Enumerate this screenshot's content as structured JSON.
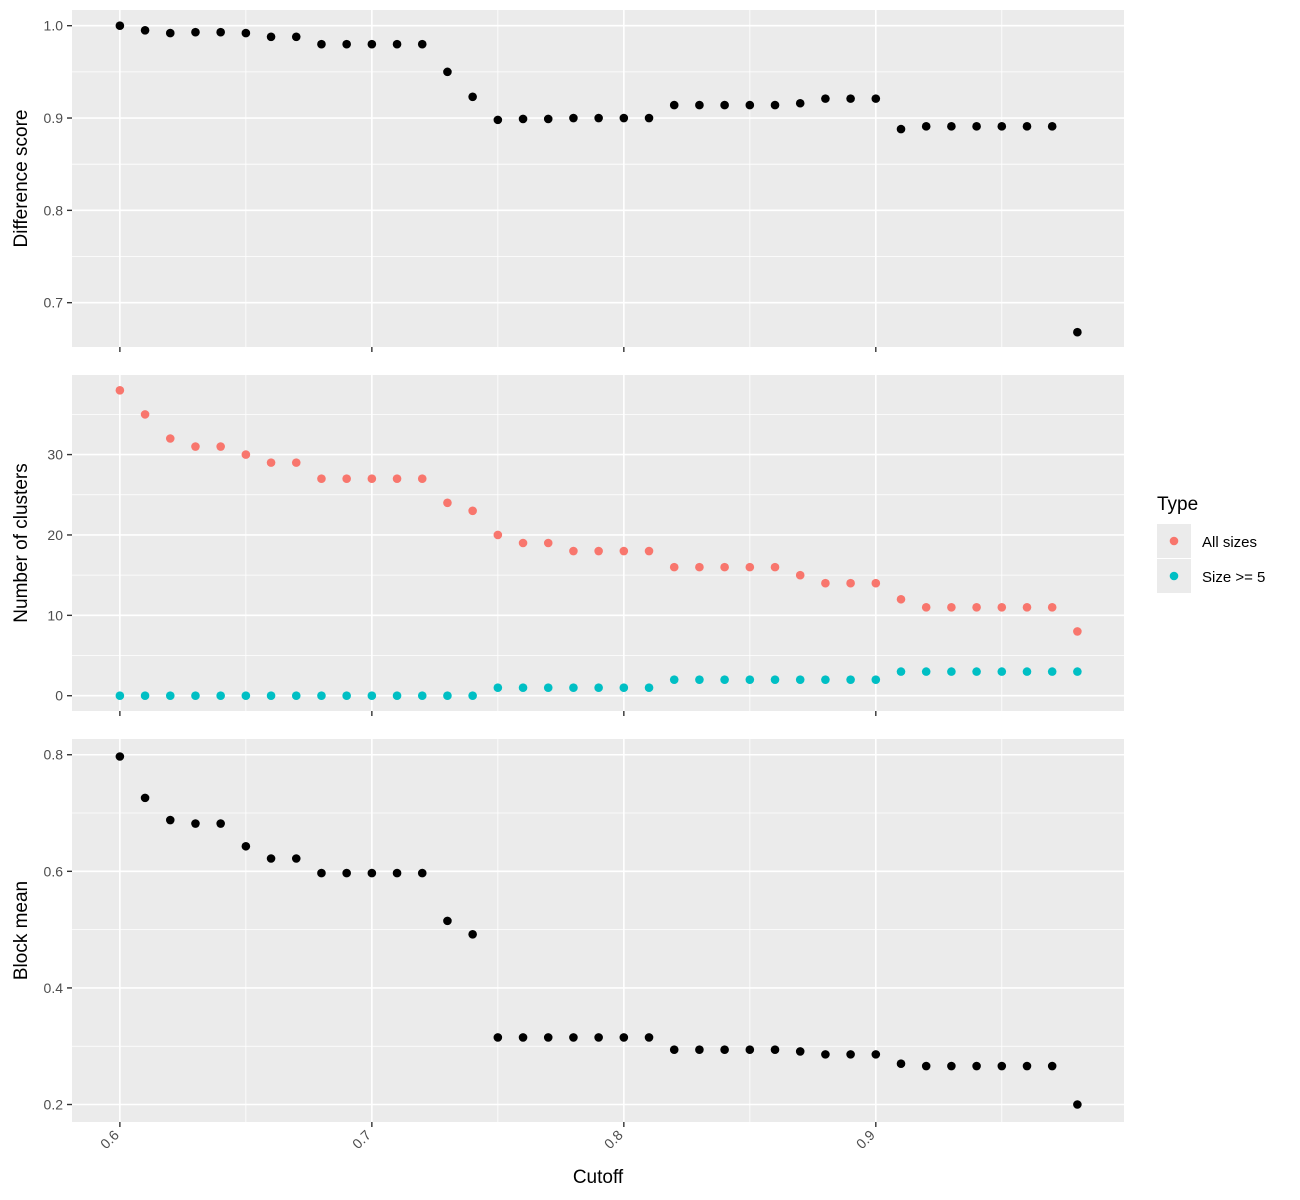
{
  "chart_data": {
    "type": "scatter",
    "xlabel": "Cutoff",
    "x_ticks": [
      "0.6",
      "0.7",
      "0.8",
      "0.9"
    ],
    "x_tick_values": [
      0.6,
      0.7,
      0.8,
      0.9
    ],
    "xlim": [
      0.581,
      0.9985
    ],
    "grid": true,
    "legend": {
      "title": "Type",
      "placement": "right",
      "entries": [
        {
          "label": "All sizes",
          "color": "#F8766D"
        },
        {
          "label": "Size >= 5",
          "color": "#00BFC4"
        }
      ]
    },
    "x": [
      0.6,
      0.61,
      0.62,
      0.63,
      0.64,
      0.65,
      0.66,
      0.67,
      0.68,
      0.69,
      0.7,
      0.71,
      0.72,
      0.73,
      0.74,
      0.75,
      0.76,
      0.77,
      0.78,
      0.79,
      0.8,
      0.81,
      0.82,
      0.83,
      0.84,
      0.85,
      0.86,
      0.87,
      0.88,
      0.89,
      0.9,
      0.91,
      0.92,
      0.93,
      0.94,
      0.95,
      0.96,
      0.97,
      0.98
    ],
    "panels": [
      {
        "ylabel": "Difference score",
        "ylim": [
          0.652,
          1.017
        ],
        "y_ticks": [
          "0.7",
          "0.8",
          "0.9",
          "1.0"
        ],
        "y_tick_values": [
          0.7,
          0.8,
          0.9,
          1.0
        ],
        "series": [
          {
            "color": "#000000",
            "values": [
              1.0,
              0.995,
              0.992,
              0.993,
              0.993,
              0.992,
              0.988,
              0.988,
              0.98,
              0.98,
              0.98,
              0.98,
              0.98,
              0.95,
              0.923,
              0.898,
              0.899,
              0.899,
              0.9,
              0.9,
              0.9,
              0.9,
              0.914,
              0.914,
              0.914,
              0.914,
              0.914,
              0.916,
              0.921,
              0.921,
              0.921,
              0.888,
              0.891,
              0.891,
              0.891,
              0.891,
              0.891,
              0.891,
              0.668
            ]
          }
        ]
      },
      {
        "ylabel": "Number of clusters",
        "ylim": [
          -1.9,
          39.9
        ],
        "y_ticks": [
          "0",
          "10",
          "20",
          "30"
        ],
        "y_tick_values": [
          0,
          10,
          20,
          30
        ],
        "series": [
          {
            "name": "All sizes",
            "color": "#F8766D",
            "values": [
              38,
              35,
              32,
              31,
              31,
              30,
              29,
              29,
              27,
              27,
              27,
              27,
              27,
              24,
              23,
              20,
              19,
              19,
              18,
              18,
              18,
              18,
              16,
              16,
              16,
              16,
              16,
              15,
              14,
              14,
              14,
              12,
              11,
              11,
              11,
              11,
              11,
              11,
              8
            ]
          },
          {
            "name": "Size >= 5",
            "color": "#00BFC4",
            "values": [
              0,
              0,
              0,
              0,
              0,
              0,
              0,
              0,
              0,
              0,
              0,
              0,
              0,
              0,
              0,
              1,
              1,
              1,
              1,
              1,
              1,
              1,
              2,
              2,
              2,
              2,
              2,
              2,
              2,
              2,
              2,
              3,
              3,
              3,
              3,
              3,
              3,
              3,
              3
            ]
          }
        ]
      },
      {
        "ylabel": "Block mean",
        "ylim": [
          0.17,
          0.827
        ],
        "y_ticks": [
          "0.2",
          "0.4",
          "0.6",
          "0.8"
        ],
        "y_tick_values": [
          0.2,
          0.4,
          0.6,
          0.8
        ],
        "series": [
          {
            "color": "#000000",
            "values": [
              0.797,
              0.726,
              0.688,
              0.682,
              0.682,
              0.643,
              0.622,
              0.622,
              0.597,
              0.597,
              0.597,
              0.597,
              0.597,
              0.515,
              0.492,
              0.315,
              0.315,
              0.315,
              0.315,
              0.315,
              0.315,
              0.315,
              0.294,
              0.294,
              0.294,
              0.294,
              0.294,
              0.291,
              0.286,
              0.286,
              0.286,
              0.27,
              0.266,
              0.266,
              0.266,
              0.266,
              0.266,
              0.266,
              0.2
            ]
          }
        ]
      }
    ]
  }
}
